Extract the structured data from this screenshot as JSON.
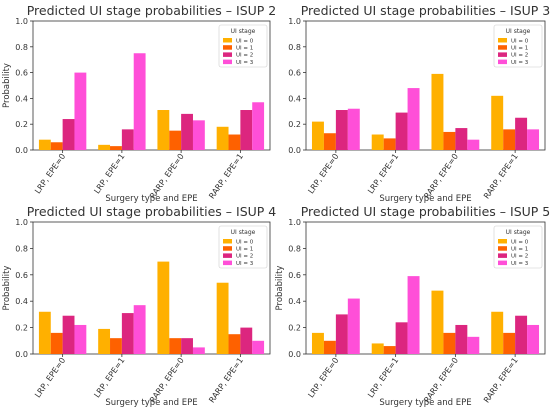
{
  "chart_data": [
    {
      "type": "bar",
      "title": "Predicted UI stage probabilities – ISUP 2",
      "xlabel": "Surgery type and EPE",
      "ylabel": "Probability",
      "ylim": [
        0,
        1.0
      ],
      "yticks": [
        "0.0",
        "0.2",
        "0.4",
        "0.6",
        "0.8",
        "1.0"
      ],
      "grid": false,
      "legend_title": "UI stage",
      "legend_position": "top-right",
      "categories": [
        "LRP, EPE=0",
        "LRP, EPE=1",
        "RARP, EPE=0",
        "RARP, EPE=1"
      ],
      "series": [
        {
          "name": "UI = 0",
          "color": "#FFB000",
          "values": [
            0.08,
            0.04,
            0.31,
            0.18
          ]
        },
        {
          "name": "UI = 1",
          "color": "#FE6100",
          "values": [
            0.06,
            0.03,
            0.15,
            0.12
          ]
        },
        {
          "name": "UI = 2",
          "color": "#DC267F",
          "values": [
            0.24,
            0.16,
            0.28,
            0.31
          ]
        },
        {
          "name": "UI = 3",
          "color": "#FF4FD8",
          "values": [
            0.6,
            0.75,
            0.23,
            0.37
          ]
        }
      ]
    },
    {
      "type": "bar",
      "title": "Predicted UI stage probabilities – ISUP 3",
      "xlabel": "Surgery type and EPE",
      "ylabel": "",
      "ylim": [
        0,
        1.0
      ],
      "yticks": [
        "0.0",
        "0.2",
        "0.4",
        "0.6",
        "0.8",
        "1.0"
      ],
      "grid": false,
      "legend_title": "UI stage",
      "legend_position": "top-right",
      "categories": [
        "LRP, EPE=0",
        "LRP, EPE=1",
        "RARP, EPE=0",
        "RARP, EPE=1"
      ],
      "series": [
        {
          "name": "UI = 0",
          "color": "#FFB000",
          "values": [
            0.22,
            0.12,
            0.59,
            0.42
          ]
        },
        {
          "name": "UI = 1",
          "color": "#FE6100",
          "values": [
            0.13,
            0.09,
            0.14,
            0.16
          ]
        },
        {
          "name": "UI = 2",
          "color": "#DC267F",
          "values": [
            0.31,
            0.29,
            0.17,
            0.25
          ]
        },
        {
          "name": "UI = 3",
          "color": "#FF4FD8",
          "values": [
            0.32,
            0.48,
            0.08,
            0.16
          ]
        }
      ]
    },
    {
      "type": "bar",
      "title": "Predicted UI stage probabilities – ISUP 4",
      "xlabel": "Surgery type and EPE",
      "ylabel": "Probability",
      "ylim": [
        0,
        1.0
      ],
      "yticks": [
        "0.0",
        "0.2",
        "0.4",
        "0.6",
        "0.8",
        "1.0"
      ],
      "grid": false,
      "legend_title": "UI stage",
      "legend_position": "top-right",
      "categories": [
        "LRP, EPE=0",
        "LRP, EPE=1",
        "RARP, EPE=0",
        "RARP, EPE=1"
      ],
      "series": [
        {
          "name": "UI = 0",
          "color": "#FFB000",
          "values": [
            0.32,
            0.19,
            0.7,
            0.54
          ]
        },
        {
          "name": "UI = 1",
          "color": "#FE6100",
          "values": [
            0.16,
            0.12,
            0.12,
            0.15
          ]
        },
        {
          "name": "UI = 2",
          "color": "#DC267F",
          "values": [
            0.29,
            0.31,
            0.12,
            0.2
          ]
        },
        {
          "name": "UI = 3",
          "color": "#FF4FD8",
          "values": [
            0.22,
            0.37,
            0.05,
            0.1
          ]
        }
      ]
    },
    {
      "type": "bar",
      "title": "Predicted UI stage probabilities – ISUP 5",
      "xlabel": "Surgery type and EPE",
      "ylabel": "Probability",
      "ylim": [
        0,
        1.0
      ],
      "yticks": [
        "0.0",
        "0.2",
        "0.4",
        "0.6",
        "0.8",
        "1.0"
      ],
      "grid": false,
      "legend_title": "UI stage",
      "legend_position": "top-right",
      "categories": [
        "LRP, EPE=0",
        "LRP, EPE=1",
        "RARP, EPE=0",
        "RARP, EPE=1"
      ],
      "series": [
        {
          "name": "UI = 0",
          "color": "#FFB000",
          "values": [
            0.16,
            0.08,
            0.48,
            0.32
          ]
        },
        {
          "name": "UI = 1",
          "color": "#FE6100",
          "values": [
            0.1,
            0.06,
            0.16,
            0.16
          ]
        },
        {
          "name": "UI = 2",
          "color": "#DC267F",
          "values": [
            0.3,
            0.24,
            0.22,
            0.29
          ]
        },
        {
          "name": "UI = 3",
          "color": "#FF4FD8",
          "values": [
            0.42,
            0.59,
            0.13,
            0.22
          ]
        }
      ]
    }
  ]
}
